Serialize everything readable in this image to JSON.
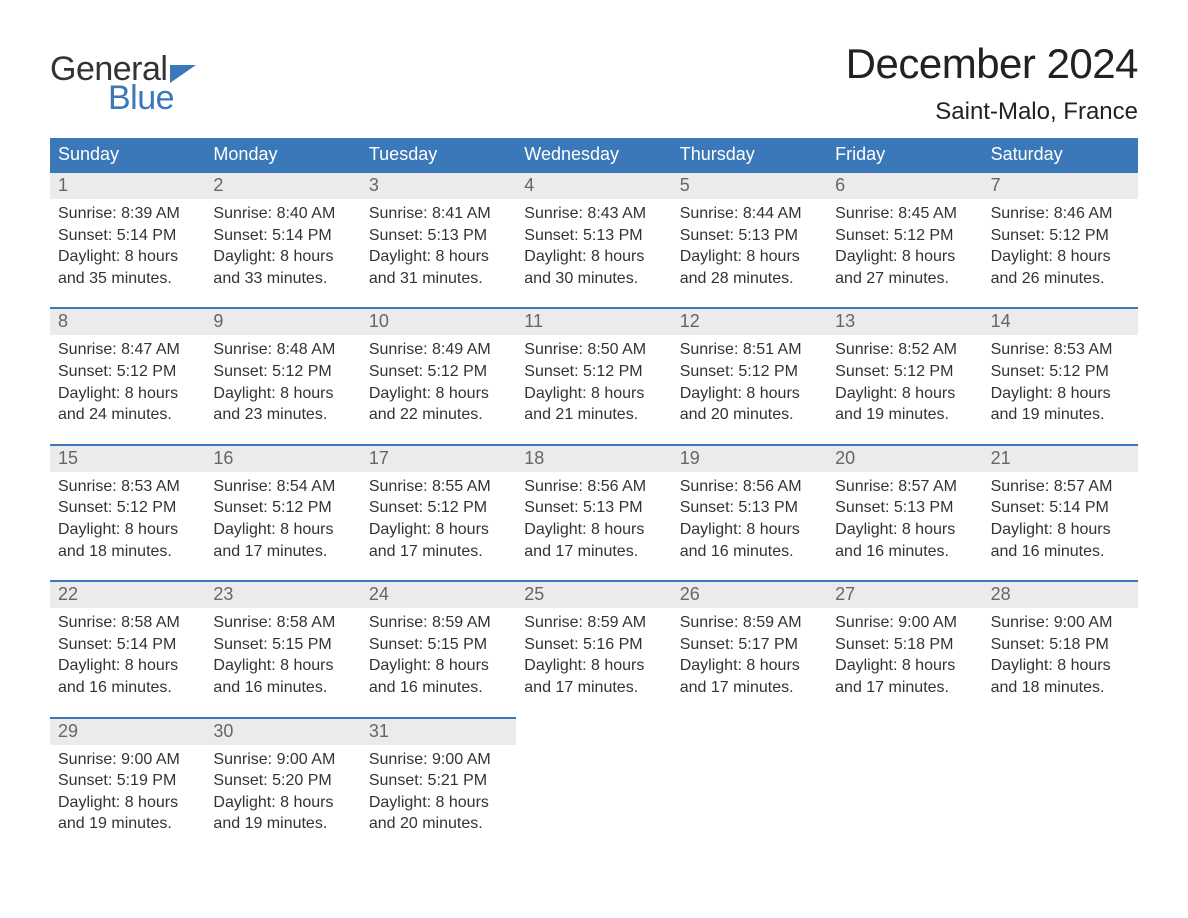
{
  "logo": {
    "line1": "General",
    "line2": "Blue",
    "flag_color": "#3a78b9"
  },
  "title": "December 2024",
  "location": "Saint-Malo, France",
  "colors": {
    "header_bg": "#3a78b9",
    "header_text": "#ffffff",
    "daynum_bg": "#ebebeb",
    "daynum_text": "#666666",
    "body_text": "#333333",
    "page_bg": "#ffffff",
    "row_border": "#3a78b9"
  },
  "fonts": {
    "title_size_pt": 32,
    "location_size_pt": 18,
    "header_size_pt": 14,
    "daynum_size_pt": 14,
    "body_size_pt": 12
  },
  "weekdays": [
    "Sunday",
    "Monday",
    "Tuesday",
    "Wednesday",
    "Thursday",
    "Friday",
    "Saturday"
  ],
  "labels": {
    "sunrise": "Sunrise:",
    "sunset": "Sunset:",
    "daylight": "Daylight:"
  },
  "first_weekday_offset": 0,
  "days": [
    {
      "n": 1,
      "sunrise": "8:39 AM",
      "sunset": "5:14 PM",
      "daylight": "8 hours and 35 minutes."
    },
    {
      "n": 2,
      "sunrise": "8:40 AM",
      "sunset": "5:14 PM",
      "daylight": "8 hours and 33 minutes."
    },
    {
      "n": 3,
      "sunrise": "8:41 AM",
      "sunset": "5:13 PM",
      "daylight": "8 hours and 31 minutes."
    },
    {
      "n": 4,
      "sunrise": "8:43 AM",
      "sunset": "5:13 PM",
      "daylight": "8 hours and 30 minutes."
    },
    {
      "n": 5,
      "sunrise": "8:44 AM",
      "sunset": "5:13 PM",
      "daylight": "8 hours and 28 minutes."
    },
    {
      "n": 6,
      "sunrise": "8:45 AM",
      "sunset": "5:12 PM",
      "daylight": "8 hours and 27 minutes."
    },
    {
      "n": 7,
      "sunrise": "8:46 AM",
      "sunset": "5:12 PM",
      "daylight": "8 hours and 26 minutes."
    },
    {
      "n": 8,
      "sunrise": "8:47 AM",
      "sunset": "5:12 PM",
      "daylight": "8 hours and 24 minutes."
    },
    {
      "n": 9,
      "sunrise": "8:48 AM",
      "sunset": "5:12 PM",
      "daylight": "8 hours and 23 minutes."
    },
    {
      "n": 10,
      "sunrise": "8:49 AM",
      "sunset": "5:12 PM",
      "daylight": "8 hours and 22 minutes."
    },
    {
      "n": 11,
      "sunrise": "8:50 AM",
      "sunset": "5:12 PM",
      "daylight": "8 hours and 21 minutes."
    },
    {
      "n": 12,
      "sunrise": "8:51 AM",
      "sunset": "5:12 PM",
      "daylight": "8 hours and 20 minutes."
    },
    {
      "n": 13,
      "sunrise": "8:52 AM",
      "sunset": "5:12 PM",
      "daylight": "8 hours and 19 minutes."
    },
    {
      "n": 14,
      "sunrise": "8:53 AM",
      "sunset": "5:12 PM",
      "daylight": "8 hours and 19 minutes."
    },
    {
      "n": 15,
      "sunrise": "8:53 AM",
      "sunset": "5:12 PM",
      "daylight": "8 hours and 18 minutes."
    },
    {
      "n": 16,
      "sunrise": "8:54 AM",
      "sunset": "5:12 PM",
      "daylight": "8 hours and 17 minutes."
    },
    {
      "n": 17,
      "sunrise": "8:55 AM",
      "sunset": "5:12 PM",
      "daylight": "8 hours and 17 minutes."
    },
    {
      "n": 18,
      "sunrise": "8:56 AM",
      "sunset": "5:13 PM",
      "daylight": "8 hours and 17 minutes."
    },
    {
      "n": 19,
      "sunrise": "8:56 AM",
      "sunset": "5:13 PM",
      "daylight": "8 hours and 16 minutes."
    },
    {
      "n": 20,
      "sunrise": "8:57 AM",
      "sunset": "5:13 PM",
      "daylight": "8 hours and 16 minutes."
    },
    {
      "n": 21,
      "sunrise": "8:57 AM",
      "sunset": "5:14 PM",
      "daylight": "8 hours and 16 minutes."
    },
    {
      "n": 22,
      "sunrise": "8:58 AM",
      "sunset": "5:14 PM",
      "daylight": "8 hours and 16 minutes."
    },
    {
      "n": 23,
      "sunrise": "8:58 AM",
      "sunset": "5:15 PM",
      "daylight": "8 hours and 16 minutes."
    },
    {
      "n": 24,
      "sunrise": "8:59 AM",
      "sunset": "5:15 PM",
      "daylight": "8 hours and 16 minutes."
    },
    {
      "n": 25,
      "sunrise": "8:59 AM",
      "sunset": "5:16 PM",
      "daylight": "8 hours and 17 minutes."
    },
    {
      "n": 26,
      "sunrise": "8:59 AM",
      "sunset": "5:17 PM",
      "daylight": "8 hours and 17 minutes."
    },
    {
      "n": 27,
      "sunrise": "9:00 AM",
      "sunset": "5:18 PM",
      "daylight": "8 hours and 17 minutes."
    },
    {
      "n": 28,
      "sunrise": "9:00 AM",
      "sunset": "5:18 PM",
      "daylight": "8 hours and 18 minutes."
    },
    {
      "n": 29,
      "sunrise": "9:00 AM",
      "sunset": "5:19 PM",
      "daylight": "8 hours and 19 minutes."
    },
    {
      "n": 30,
      "sunrise": "9:00 AM",
      "sunset": "5:20 PM",
      "daylight": "8 hours and 19 minutes."
    },
    {
      "n": 31,
      "sunrise": "9:00 AM",
      "sunset": "5:21 PM",
      "daylight": "8 hours and 20 minutes."
    }
  ]
}
